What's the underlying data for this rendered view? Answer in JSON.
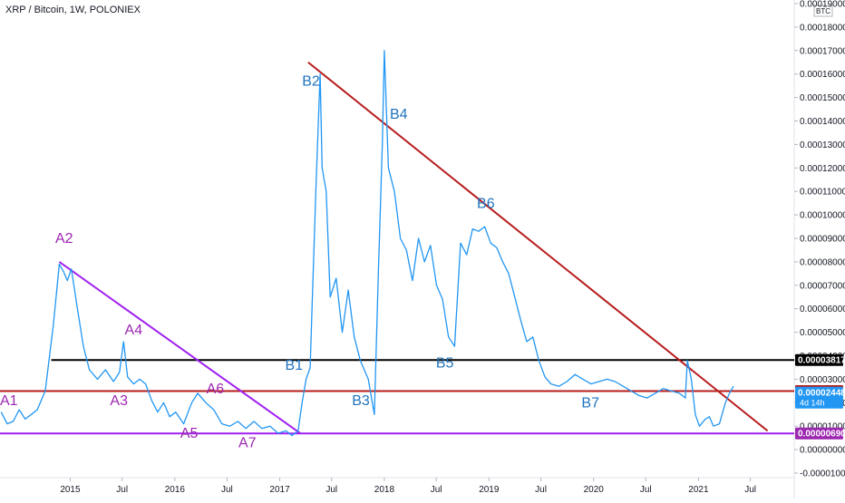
{
  "header": {
    "title": "XRP / Bitcoin, 1W, POLONIEX",
    "currency_badge": "BTC"
  },
  "colors": {
    "price_line": "#2196f3",
    "purple": "#9c27b0",
    "violet_line": "#a020f0",
    "red_line": "#b71c1c",
    "black_line": "#000000",
    "blue_badge": "#2196f3",
    "annotation_b": "#1e73be"
  },
  "chart_data": {
    "type": "line",
    "title": "XRP / Bitcoin, 1W, POLONIEX",
    "xlabel": "",
    "ylabel": "",
    "xlim": [
      "2014-05-01",
      "2021-12-01"
    ],
    "ylim": [
      -1e-05,
      0.00019
    ],
    "y_ticks": [
      "0.00019000",
      "0.00018000",
      "0.00017000",
      "0.00016000",
      "0.00015000",
      "0.00014000",
      "0.00013000",
      "0.00012000",
      "0.00011000",
      "0.00010000",
      "0.00009000",
      "0.00008000",
      "0.00007000",
      "0.00006000",
      "0.00005000",
      "0.00004000",
      "0.00003000",
      "0.00002000",
      "0.00001000",
      "0.00000000",
      "-0.00001000"
    ],
    "x_ticks": [
      {
        "label": "2015",
        "x": "2015-01-01"
      },
      {
        "label": "Jul",
        "x": "2015-07-01"
      },
      {
        "label": "2016",
        "x": "2016-01-01"
      },
      {
        "label": "Jul",
        "x": "2016-07-01"
      },
      {
        "label": "2017",
        "x": "2017-01-01"
      },
      {
        "label": "Jul",
        "x": "2017-07-01"
      },
      {
        "label": "2018",
        "x": "2018-01-01"
      },
      {
        "label": "Jul",
        "x": "2018-07-01"
      },
      {
        "label": "2019",
        "x": "2019-01-01"
      },
      {
        "label": "Jul",
        "x": "2019-07-01"
      },
      {
        "label": "2020",
        "x": "2020-01-01"
      },
      {
        "label": "Jul",
        "x": "2020-07-01"
      },
      {
        "label": "2021",
        "x": "2021-01-01"
      },
      {
        "label": "Jul",
        "x": "2021-07-01"
      }
    ],
    "series": [
      {
        "points": [
          [
            "2014-05-05",
            1.6e-05
          ],
          [
            "2014-05-26",
            1.1e-05
          ],
          [
            "2014-06-16",
            1.2e-05
          ],
          [
            "2014-07-07",
            1.7e-05
          ],
          [
            "2014-07-28",
            1.3e-05
          ],
          [
            "2014-08-18",
            1.5e-05
          ],
          [
            "2014-09-08",
            1.7e-05
          ],
          [
            "2014-10-06",
            2.5e-05
          ],
          [
            "2014-11-03",
            5.3e-05
          ],
          [
            "2014-11-24",
            7.9e-05
          ],
          [
            "2014-12-08",
            7.6e-05
          ],
          [
            "2014-12-22",
            7.2e-05
          ],
          [
            "2015-01-05",
            7.7e-05
          ],
          [
            "2015-01-26",
            6e-05
          ],
          [
            "2015-02-16",
            4.4e-05
          ],
          [
            "2015-03-09",
            3.4e-05
          ],
          [
            "2015-04-06",
            3e-05
          ],
          [
            "2015-05-04",
            3.4e-05
          ],
          [
            "2015-06-01",
            2.9e-05
          ],
          [
            "2015-06-22",
            3.3e-05
          ],
          [
            "2015-07-06",
            4.6e-05
          ],
          [
            "2015-07-20",
            3.1e-05
          ],
          [
            "2015-08-10",
            2.8e-05
          ],
          [
            "2015-08-31",
            3e-05
          ],
          [
            "2015-09-21",
            2.8e-05
          ],
          [
            "2015-10-12",
            2.1e-05
          ],
          [
            "2015-11-02",
            1.6e-05
          ],
          [
            "2015-11-23",
            2e-05
          ],
          [
            "2015-12-14",
            1.4e-05
          ],
          [
            "2016-01-04",
            1.6e-05
          ],
          [
            "2016-02-01",
            1.1e-05
          ],
          [
            "2016-02-29",
            2e-05
          ],
          [
            "2016-03-21",
            2.4e-05
          ],
          [
            "2016-04-18",
            2e-05
          ],
          [
            "2016-05-16",
            1.7e-05
          ],
          [
            "2016-06-13",
            1.1e-05
          ],
          [
            "2016-07-11",
            1e-05
          ],
          [
            "2016-08-08",
            1.2e-05
          ],
          [
            "2016-09-05",
            9e-06
          ],
          [
            "2016-10-03",
            1.2e-05
          ],
          [
            "2016-10-31",
            9e-06
          ],
          [
            "2016-11-28",
            1e-05
          ],
          [
            "2016-12-26",
            7e-06
          ],
          [
            "2017-01-23",
            8e-06
          ],
          [
            "2017-02-13",
            6e-06
          ],
          [
            "2017-03-06",
            8e-06
          ],
          [
            "2017-03-20",
            2e-05
          ],
          [
            "2017-04-03",
            3e-05
          ],
          [
            "2017-04-17",
            3.5e-05
          ],
          [
            "2017-04-24",
            6.2e-05
          ],
          [
            "2017-05-08",
            0.000114
          ],
          [
            "2017-05-22",
            0.00016
          ],
          [
            "2017-05-29",
            0.00012
          ],
          [
            "2017-06-12",
            0.00011
          ],
          [
            "2017-06-26",
            6.5e-05
          ],
          [
            "2017-07-17",
            7.3e-05
          ],
          [
            "2017-08-07",
            5e-05
          ],
          [
            "2017-08-28",
            6.8e-05
          ],
          [
            "2017-09-18",
            4.8e-05
          ],
          [
            "2017-10-09",
            3.8e-05
          ],
          [
            "2017-11-06",
            3e-05
          ],
          [
            "2017-11-27",
            1.5e-05
          ],
          [
            "2017-12-11",
            7.5e-05
          ],
          [
            "2017-12-25",
            0.00013
          ],
          [
            "2018-01-01",
            0.00017
          ],
          [
            "2018-01-15",
            0.00012
          ],
          [
            "2018-02-05",
            0.00011
          ],
          [
            "2018-02-26",
            9e-05
          ],
          [
            "2018-03-19",
            8.5e-05
          ],
          [
            "2018-04-09",
            7.2e-05
          ],
          [
            "2018-04-30",
            9e-05
          ],
          [
            "2018-05-21",
            8e-05
          ],
          [
            "2018-06-11",
            8.7e-05
          ],
          [
            "2018-07-02",
            7e-05
          ],
          [
            "2018-07-23",
            6.4e-05
          ],
          [
            "2018-08-13",
            4.8e-05
          ],
          [
            "2018-09-03",
            4.4e-05
          ],
          [
            "2018-09-24",
            8.8e-05
          ],
          [
            "2018-10-15",
            8.3e-05
          ],
          [
            "2018-11-05",
            9.4e-05
          ],
          [
            "2018-11-26",
            9.3e-05
          ],
          [
            "2018-12-17",
            9.5e-05
          ],
          [
            "2019-01-07",
            8.8e-05
          ],
          [
            "2019-01-28",
            8.6e-05
          ],
          [
            "2019-02-18",
            8e-05
          ],
          [
            "2019-03-11",
            7.5e-05
          ],
          [
            "2019-04-01",
            6.5e-05
          ],
          [
            "2019-04-22",
            5.5e-05
          ],
          [
            "2019-05-13",
            4.6e-05
          ],
          [
            "2019-06-03",
            4.8e-05
          ],
          [
            "2019-06-24",
            3.8e-05
          ],
          [
            "2019-07-15",
            3.1e-05
          ],
          [
            "2019-08-05",
            2.8e-05
          ],
          [
            "2019-09-02",
            2.7e-05
          ],
          [
            "2019-09-30",
            2.9e-05
          ],
          [
            "2019-10-28",
            3.2e-05
          ],
          [
            "2019-11-25",
            3e-05
          ],
          [
            "2019-12-23",
            2.8e-05
          ],
          [
            "2020-01-20",
            2.9e-05
          ],
          [
            "2020-02-17",
            3e-05
          ],
          [
            "2020-03-16",
            2.9e-05
          ],
          [
            "2020-04-13",
            2.7e-05
          ],
          [
            "2020-05-11",
            2.5e-05
          ],
          [
            "2020-06-08",
            2.3e-05
          ],
          [
            "2020-07-06",
            2.2e-05
          ],
          [
            "2020-08-03",
            2.4e-05
          ],
          [
            "2020-08-31",
            2.6e-05
          ],
          [
            "2020-09-28",
            2.5e-05
          ],
          [
            "2020-10-26",
            2.4e-05
          ],
          [
            "2020-11-16",
            2.2e-05
          ],
          [
            "2020-11-23",
            3.8e-05
          ],
          [
            "2020-12-07",
            3e-05
          ],
          [
            "2020-12-21",
            1.5e-05
          ],
          [
            "2021-01-04",
            1e-05
          ],
          [
            "2021-01-25",
            1.3e-05
          ],
          [
            "2021-02-08",
            1.4e-05
          ],
          [
            "2021-02-22",
            1e-05
          ],
          [
            "2021-03-15",
            1.1e-05
          ],
          [
            "2021-04-05",
            2e-05
          ],
          [
            "2021-04-19",
            2.4e-05
          ],
          [
            "2021-05-03",
            2.7e-05
          ]
        ]
      }
    ],
    "trendlines": [
      {
        "name": "falling-a",
        "from": [
          "2014-11-24",
          8e-05
        ],
        "to": [
          "2017-03-13",
          7e-06
        ]
      },
      {
        "name": "falling-b",
        "from": [
          "2017-04-10",
          0.000165
        ],
        "to": [
          "2021-08-30",
          8e-06
        ]
      }
    ],
    "horizontal_lines": [
      {
        "name": "level-black",
        "y": 3.817e-05
      },
      {
        "name": "level-red",
        "y": 2.495e-05
      },
      {
        "name": "level-violet",
        "y": 6.9e-06
      }
    ],
    "price_labels": [
      {
        "value": "0.00003817",
        "color": "#000000"
      },
      {
        "value": "0.00002495",
        "color": "#b71c1c"
      },
      {
        "value": "0.00002448",
        "sub": "4d 14h",
        "color": "#2196f3"
      },
      {
        "value": "0.00000690",
        "color": "#9c27b0"
      }
    ],
    "annotations": [
      {
        "text": "A1",
        "x": "2014-05-01",
        "y": 1.9e-05,
        "group": "a"
      },
      {
        "text": "A2",
        "x": "2014-11-10",
        "y": 8.8e-05,
        "group": "a"
      },
      {
        "text": "A3",
        "x": "2015-05-20",
        "y": 1.9e-05,
        "group": "a"
      },
      {
        "text": "A4",
        "x": "2015-07-10",
        "y": 4.9e-05,
        "group": "a"
      },
      {
        "text": "A5",
        "x": "2016-01-20",
        "y": 5e-06,
        "group": "a"
      },
      {
        "text": "A6",
        "x": "2016-04-20",
        "y": 2.4e-05,
        "group": "a"
      },
      {
        "text": "A7",
        "x": "2016-08-10",
        "y": 1e-06,
        "group": "a"
      },
      {
        "text": "B1",
        "x": "2017-01-20",
        "y": 3.4e-05,
        "group": "b"
      },
      {
        "text": "B2",
        "x": "2017-03-20",
        "y": 0.000155,
        "group": "b"
      },
      {
        "text": "B3",
        "x": "2017-09-10",
        "y": 1.9e-05,
        "group": "b"
      },
      {
        "text": "B4",
        "x": "2018-01-20",
        "y": 0.000141,
        "group": "b"
      },
      {
        "text": "B5",
        "x": "2018-06-30",
        "y": 3.5e-05,
        "group": "b"
      },
      {
        "text": "B6",
        "x": "2018-11-20",
        "y": 0.000103,
        "group": "b"
      },
      {
        "text": "B7",
        "x": "2019-11-20",
        "y": 1.8e-05,
        "group": "b"
      }
    ]
  }
}
